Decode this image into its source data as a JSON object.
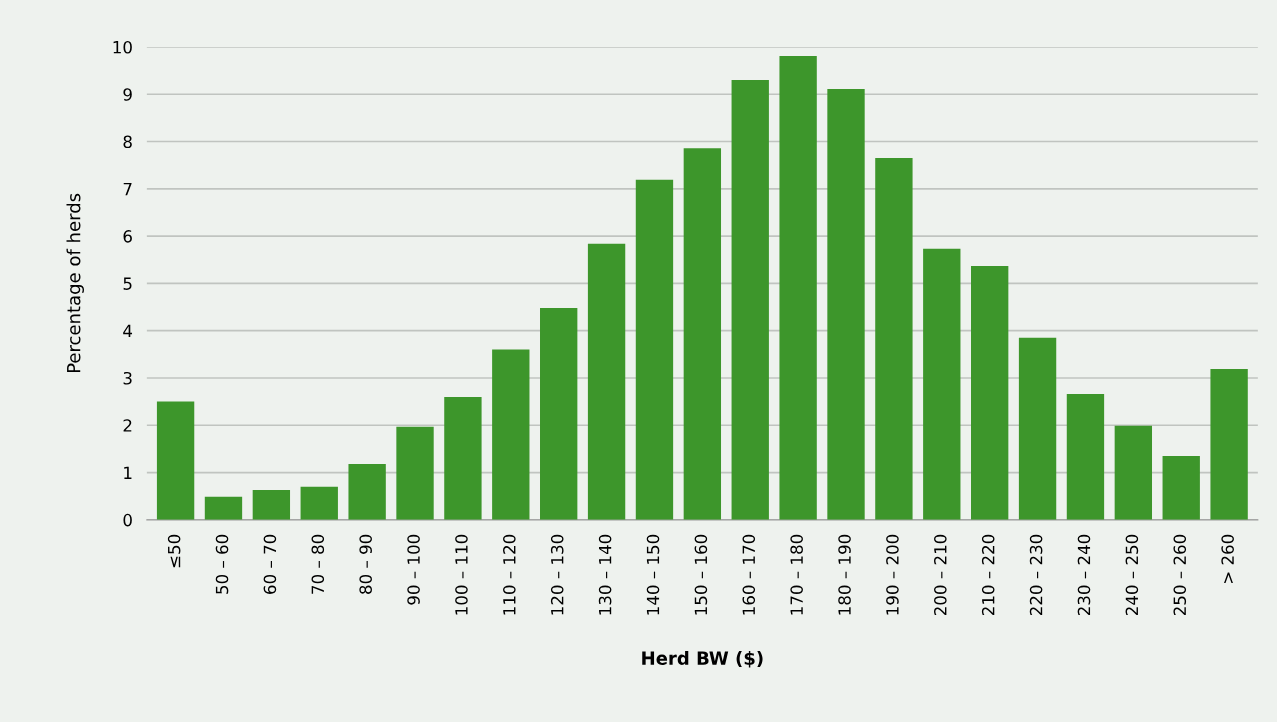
{
  "chart_data": {
    "type": "bar",
    "xlabel": "Herd BW ($)",
    "ylabel": "Percentage of herds",
    "categories": [
      "≤50",
      "50 – 60",
      "60 – 70",
      "70 – 80",
      "80 – 90",
      "90 – 100",
      "100 – 110",
      "110 – 120",
      "120 – 130",
      "130 – 140",
      "140 – 150",
      "150 – 160",
      "160 – 170",
      "170 – 180",
      "180 – 190",
      "190 – 200",
      "200 – 210",
      "210 – 220",
      "220 – 230",
      "230 – 240",
      "240 – 250",
      "250 – 260",
      "> 260"
    ],
    "values": [
      2.5,
      0.49,
      0.63,
      0.7,
      1.18,
      1.97,
      2.6,
      3.6,
      4.48,
      5.84,
      7.19,
      7.86,
      9.3,
      9.81,
      9.11,
      7.65,
      5.73,
      5.37,
      3.85,
      2.66,
      1.99,
      1.35,
      3.19
    ],
    "color": "#3d962b",
    "ylim": [
      0,
      10
    ],
    "yticks": [
      0,
      1,
      2,
      3,
      4,
      5,
      6,
      7,
      8,
      9,
      10
    ],
    "grid": "y",
    "legend": false
  }
}
